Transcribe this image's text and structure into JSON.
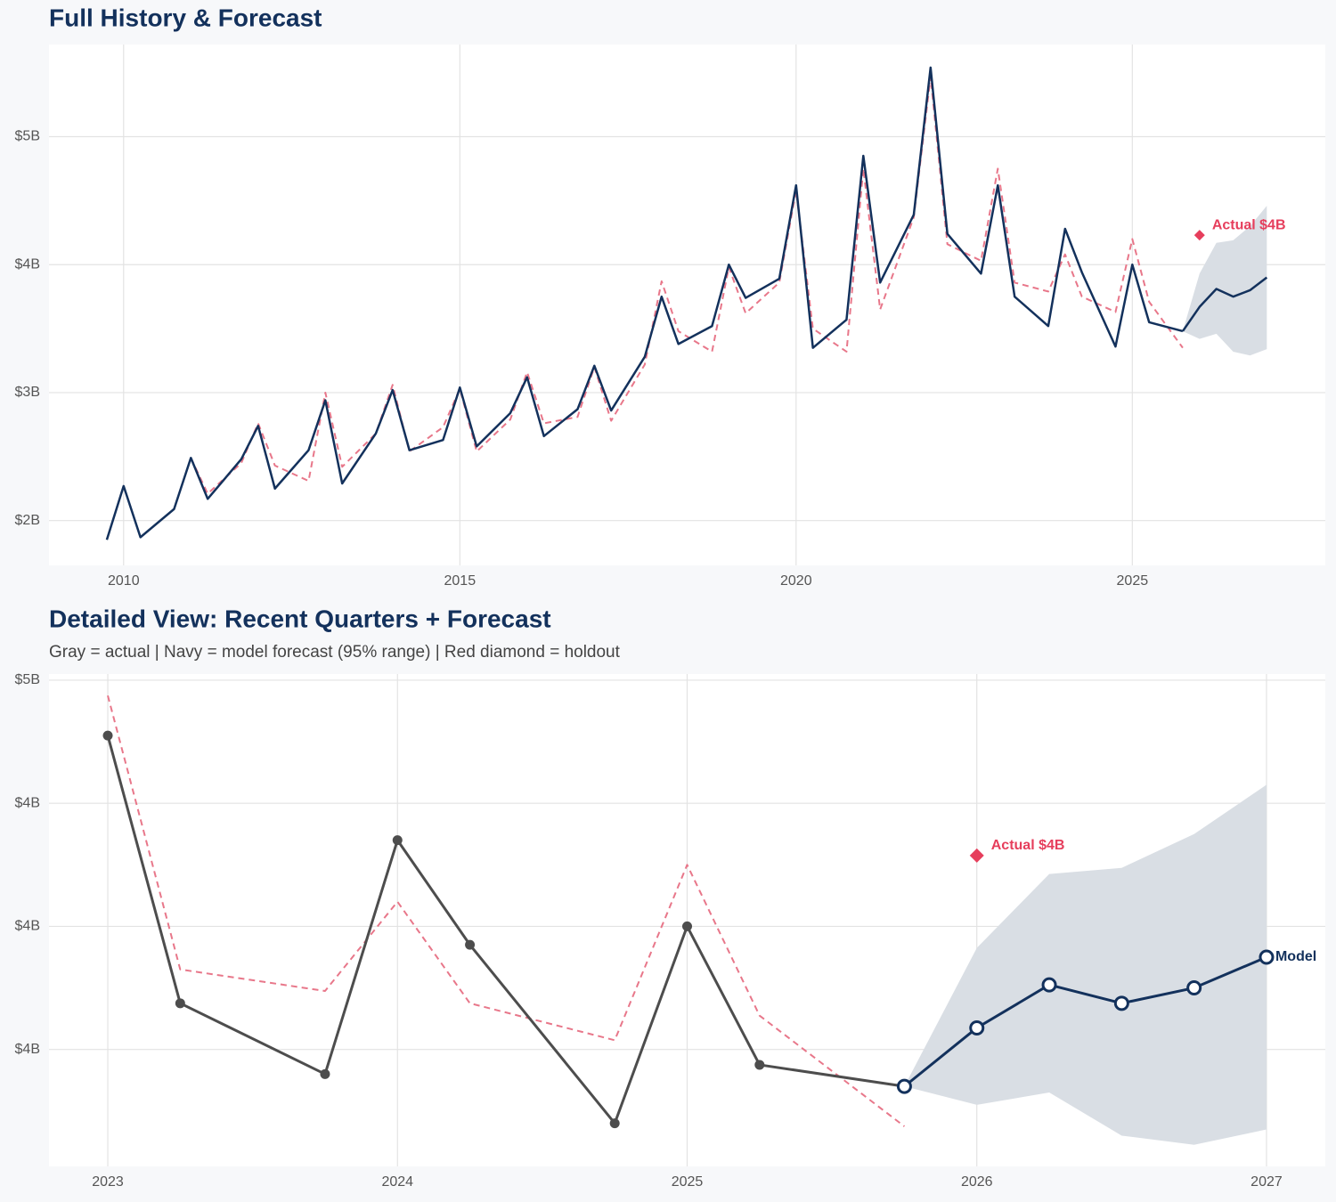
{
  "chart_data": [
    {
      "type": "line",
      "title": "Full History & Forecast",
      "xlim": [
        2008.89,
        2027.87
      ],
      "ylim": [
        1.65,
        5.72
      ],
      "xticks": [
        2010,
        2015,
        2020,
        2025
      ],
      "yticks": [
        {
          "value": 2,
          "label": "$2B"
        },
        {
          "value": 3,
          "label": "$3B"
        },
        {
          "value": 4,
          "label": "$4B"
        },
        {
          "value": 5,
          "label": "$5B"
        }
      ],
      "grid": true,
      "band": {
        "color": "#d9dee4",
        "x": [
          2025.75,
          2026,
          2026.25,
          2026.5,
          2026.75,
          2027
        ],
        "lower": [
          3.48,
          3.42,
          3.46,
          3.32,
          3.29,
          3.34
        ],
        "upper": [
          3.48,
          3.93,
          4.17,
          4.19,
          4.3,
          4.46
        ]
      },
      "series": [
        {
          "color": "#e8778a",
          "dashed": true,
          "x": [
            2009.75,
            2010,
            2010.25,
            2010.75,
            2011,
            2011.25,
            2011.75,
            2012,
            2012.25,
            2012.75,
            2013,
            2013.25,
            2013.75,
            2014,
            2014.25,
            2014.75,
            2015,
            2015.25,
            2015.75,
            2016,
            2016.25,
            2016.75,
            2017,
            2017.25,
            2017.75,
            2018,
            2018.25,
            2018.75,
            2019,
            2019.25,
            2019.75,
            2020,
            2020.25,
            2020.75,
            2021,
            2021.25,
            2021.75,
            2022,
            2022.25,
            2022.75,
            2023,
            2023.25,
            2023.75,
            2024,
            2024.25,
            2024.75,
            2025,
            2025.25,
            2025.75
          ],
          "values": [
            null,
            null,
            null,
            null,
            2.49,
            2.21,
            2.45,
            2.76,
            2.43,
            2.31,
            3.0,
            2.42,
            2.68,
            3.06,
            2.54,
            2.73,
            3.03,
            2.54,
            2.79,
            3.16,
            2.76,
            2.81,
            3.2,
            2.78,
            3.22,
            3.87,
            3.48,
            3.32,
            3.98,
            3.62,
            3.86,
            4.58,
            3.5,
            3.32,
            4.75,
            3.65,
            4.37,
            5.47,
            4.16,
            4.03,
            4.75,
            3.86,
            3.79,
            4.08,
            3.75,
            3.63,
            4.2,
            3.71,
            3.35
          ]
        },
        {
          "color": "#13315c",
          "x": [
            2009.75,
            2010,
            2010.25,
            2010.75,
            2011,
            2011.25,
            2011.75,
            2012,
            2012.25,
            2012.75,
            2013,
            2013.25,
            2013.75,
            2014,
            2014.25,
            2014.75,
            2015,
            2015.25,
            2015.75,
            2016,
            2016.25,
            2016.75,
            2017,
            2017.25,
            2017.75,
            2018,
            2018.25,
            2018.75,
            2019,
            2019.25,
            2019.75,
            2020,
            2020.25,
            2020.75,
            2021,
            2021.25,
            2021.75,
            2022,
            2022.25,
            2022.75,
            2023,
            2023.25,
            2023.75,
            2024,
            2024.25,
            2024.75,
            2025,
            2025.25,
            2025.75
          ],
          "values": [
            1.85,
            2.27,
            1.87,
            2.09,
            2.49,
            2.17,
            2.48,
            2.74,
            2.25,
            2.55,
            2.94,
            2.29,
            2.68,
            3.02,
            2.55,
            2.63,
            3.04,
            2.58,
            2.84,
            3.12,
            2.66,
            2.87,
            3.21,
            2.86,
            3.28,
            3.75,
            3.38,
            3.52,
            4.0,
            3.74,
            3.89,
            4.62,
            3.35,
            3.57,
            4.85,
            3.86,
            4.39,
            5.54,
            4.24,
            3.93,
            4.62,
            3.75,
            3.52,
            4.28,
            3.94,
            3.36,
            4.0,
            3.55,
            3.48
          ]
        },
        {
          "color": "#13315c",
          "x": [
            2025.75,
            2026,
            2026.25,
            2026.5,
            2026.75,
            2027
          ],
          "values": [
            3.48,
            3.67,
            3.81,
            3.75,
            3.8,
            3.9
          ]
        }
      ],
      "holdout": {
        "color": "#e63e5c",
        "x": 2026,
        "value": 4.23,
        "label": "Actual $4B"
      }
    },
    {
      "type": "line",
      "title": "Detailed View: Recent Quarters + Forecast",
      "subtitle": "Gray = actual  |  Navy = model forecast (95% range)  |  Red diamond = holdout",
      "xlim": [
        2022.797,
        2027.203
      ],
      "ylim": [
        3.22,
        4.82
      ],
      "xticks": [
        2023,
        2024,
        2025,
        2026,
        2027
      ],
      "yticks": [
        {
          "value": 3.6,
          "label": "$4B"
        },
        {
          "value": 4.0,
          "label": "$4B"
        },
        {
          "value": 4.4,
          "label": "$4B"
        },
        {
          "value": 4.8,
          "label": "$5B"
        }
      ],
      "grid": true,
      "band": {
        "color": "#d9dee4",
        "x": [
          2025.75,
          2026,
          2026.25,
          2026.5,
          2026.75,
          2027
        ],
        "lower": [
          3.48,
          3.42,
          3.46,
          3.32,
          3.29,
          3.34
        ],
        "upper": [
          3.48,
          3.93,
          4.17,
          4.19,
          4.3,
          4.46
        ]
      },
      "series": [
        {
          "color": "#e8778a",
          "dashed": true,
          "x": [
            2023,
            2023.25,
            2023.75,
            2024,
            2024.25,
            2024.75,
            2025,
            2025.25,
            2025.75
          ],
          "values": [
            4.75,
            3.86,
            3.79,
            4.08,
            3.75,
            3.63,
            4.2,
            3.71,
            3.35
          ]
        },
        {
          "color": "#4d4d4d",
          "markers": "filled",
          "x": [
            2023,
            2023.25,
            2023.75,
            2024,
            2024.25,
            2024.75,
            2025,
            2025.25,
            2025.75
          ],
          "values": [
            4.62,
            3.75,
            3.52,
            4.28,
            3.94,
            3.36,
            4.0,
            3.55,
            3.48
          ]
        },
        {
          "color": "#13315c",
          "markers": "hollow",
          "label": "Model",
          "x": [
            2025.75,
            2026,
            2026.25,
            2026.5,
            2026.75,
            2027
          ],
          "values": [
            3.48,
            3.67,
            3.81,
            3.75,
            3.8,
            3.9
          ]
        }
      ],
      "holdout": {
        "color": "#e63e5c",
        "x": 2026,
        "value": 4.23,
        "label": "Actual $4B"
      }
    }
  ]
}
